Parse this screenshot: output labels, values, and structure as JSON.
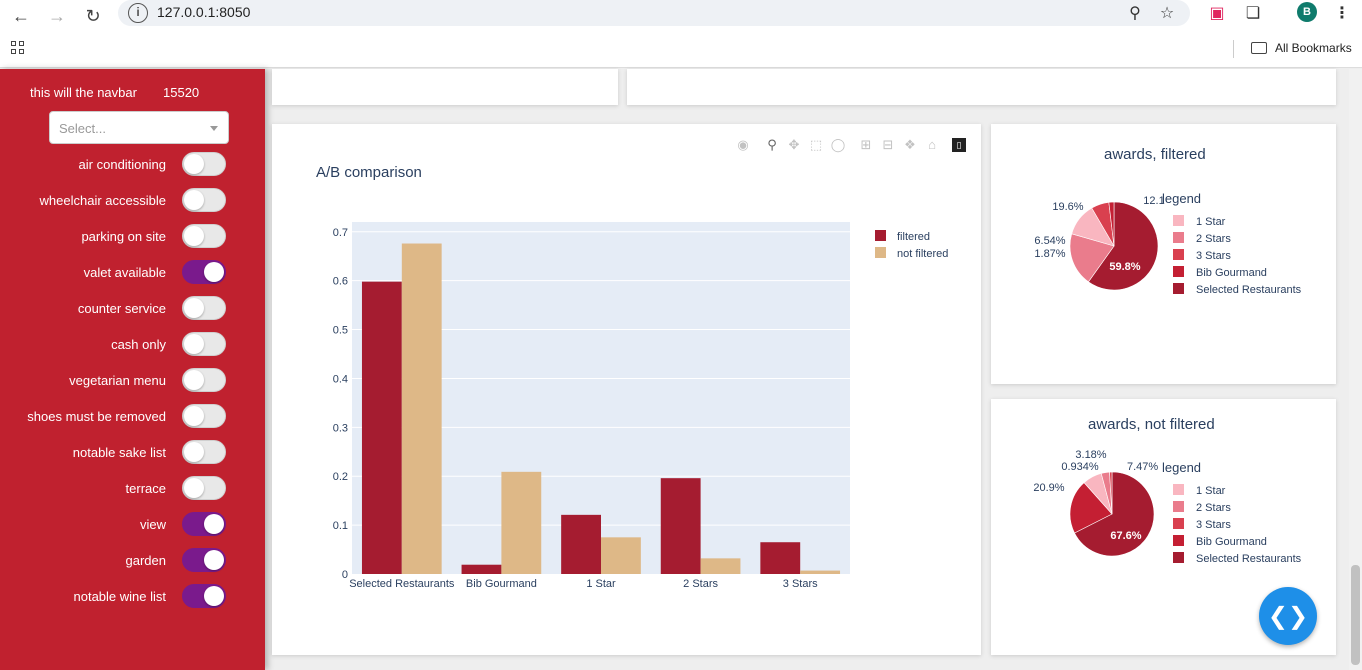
{
  "browser": {
    "url": "127.0.0.1:8050",
    "avatar_letter": "B",
    "bookmarks_label": "All Bookmarks"
  },
  "sidebar": {
    "title": "this will the navbar",
    "count": "15520",
    "select_placeholder": "Select...",
    "toggles": [
      {
        "label": "air conditioning",
        "on": false
      },
      {
        "label": "wheelchair accessible",
        "on": false
      },
      {
        "label": "parking on site",
        "on": false
      },
      {
        "label": "valet available",
        "on": true
      },
      {
        "label": "counter service",
        "on": false
      },
      {
        "label": "cash only",
        "on": false
      },
      {
        "label": "vegetarian menu",
        "on": false
      },
      {
        "label": "shoes must be removed",
        "on": false
      },
      {
        "label": "notable sake list",
        "on": false
      },
      {
        "label": "terrace",
        "on": false
      },
      {
        "label": "view",
        "on": true
      },
      {
        "label": "garden",
        "on": true
      },
      {
        "label": "notable wine list",
        "on": true
      }
    ]
  },
  "colors": {
    "filtered": "#a51c30",
    "not_filtered": "#deb887",
    "toggle_on": "#7a1a8c",
    "sidebar": "#c0212f"
  },
  "chart_data": [
    {
      "type": "bar",
      "title": "A/B comparison",
      "categories": [
        "Selected Restaurants",
        "Bib Gourmand",
        "1 Star",
        "2 Stars",
        "3 Stars"
      ],
      "series": [
        {
          "name": "filtered",
          "values": [
            0.598,
            0.019,
            0.121,
            0.196,
            0.065
          ]
        },
        {
          "name": "not filtered",
          "values": [
            0.676,
            0.209,
            0.075,
            0.032,
            0.007
          ]
        }
      ],
      "ylim": [
        0,
        0.72
      ],
      "yticks": [
        0,
        0.1,
        0.2,
        0.3,
        0.4,
        0.5,
        0.6,
        0.7
      ],
      "ytick_labels": [
        "0",
        "0.1",
        "0.2",
        "0.3",
        "0.4",
        "0.5",
        "0.6",
        "0.7"
      ],
      "legend": "top-right",
      "grid": true
    },
    {
      "type": "pie",
      "title": "awards, filtered",
      "legend_title": "legend",
      "labels": [
        "1 Star",
        "2 Stars",
        "3 Stars",
        "Bib Gourmand",
        "Selected Restaurants"
      ],
      "values": [
        12.1,
        19.6,
        6.54,
        1.87,
        59.8
      ],
      "text_labels": [
        "12.1",
        "19.6%",
        "6.54%",
        "1.87%",
        "59.8%"
      ],
      "colors": [
        "#f9b6c0",
        "#ea7c8c",
        "#d9404f",
        "#c41f33",
        "#a51c30"
      ]
    },
    {
      "type": "pie",
      "title": "awards, not filtered",
      "legend_title": "legend",
      "labels": [
        "1 Star",
        "2 Stars",
        "3 Stars",
        "Bib Gourmand",
        "Selected Restaurants"
      ],
      "values": [
        7.47,
        3.18,
        0.934,
        20.9,
        67.6
      ],
      "text_labels": [
        "7.47%",
        "3.18%",
        "0.934%",
        "20.9%",
        "67.6%"
      ],
      "colors": [
        "#f9b6c0",
        "#ea7c8c",
        "#d9404f",
        "#c41f33",
        "#a51c30"
      ]
    }
  ]
}
